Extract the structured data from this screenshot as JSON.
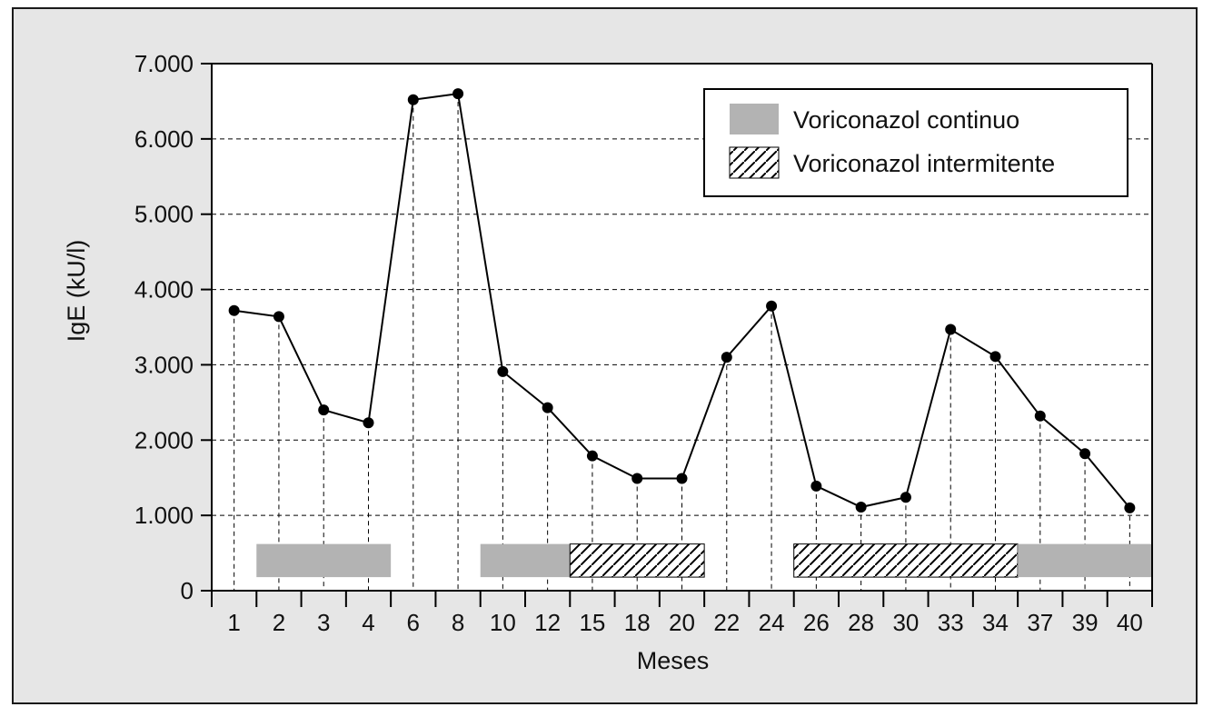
{
  "chart_data": {
    "type": "line",
    "title": "",
    "xlabel": "Meses",
    "ylabel": "IgE (kU/l)",
    "categories": [
      "1",
      "2",
      "3",
      "4",
      "6",
      "8",
      "10",
      "12",
      "15",
      "18",
      "20",
      "22",
      "24",
      "26",
      "28",
      "30",
      "33",
      "34",
      "37",
      "39",
      "40"
    ],
    "series": [
      {
        "values": [
          3720,
          3640,
          2400,
          2230,
          6520,
          6600,
          2910,
          2430,
          1790,
          1490,
          1490,
          3100,
          3780,
          1390,
          1110,
          1240,
          3470,
          3110,
          2320,
          1820,
          1100
        ]
      }
    ],
    "ylim": [
      0,
      7000
    ],
    "yticks": [
      0,
      1000,
      2000,
      3000,
      4000,
      5000,
      6000,
      7000
    ],
    "ytick_labels": [
      "0",
      "1.000",
      "2.000",
      "3.000",
      "4.000",
      "5.000",
      "6.000",
      "7.000"
    ],
    "grid": "horizontal dashed at y ticks; vertical dashed drop lines from each point",
    "treatment_periods": [
      {
        "type": "continuo",
        "from_month": "2",
        "to_month": "4"
      },
      {
        "type": "continuo",
        "from_month": "10",
        "to_month": "12"
      },
      {
        "type": "intermitente",
        "from_month": "15",
        "to_month": "20"
      },
      {
        "type": "intermitente",
        "from_month": "26",
        "to_month": "34"
      },
      {
        "type": "continuo",
        "from_month": "37",
        "to_month": "40"
      }
    ],
    "legend": {
      "placement": "top-right",
      "entries": [
        {
          "label": "Voriconazol continuo",
          "style": "solid-gray"
        },
        {
          "label": "Voriconazol intermitente",
          "style": "hatched"
        }
      ]
    },
    "colors": {
      "frame_background": "#e6e6e6",
      "plot_background": "#ffffff",
      "line": "#000000",
      "continuous_bar": "#b3b3b3",
      "hatch": "#000000"
    }
  }
}
